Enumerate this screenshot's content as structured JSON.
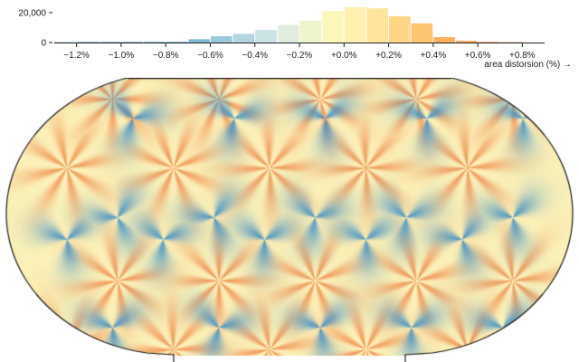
{
  "chart_data": {
    "type": "bar",
    "title": "",
    "xlabel": "area distorsion (%) →",
    "ylabel": "",
    "y_ticks": [
      {
        "value": 0,
        "label": "0"
      },
      {
        "value": 20000,
        "label": "20,000"
      }
    ],
    "x_ticks": [
      {
        "value": -1.2,
        "label": "−1.2%"
      },
      {
        "value": -1.0,
        "label": "−1.0%"
      },
      {
        "value": -0.8,
        "label": "−0.8%"
      },
      {
        "value": -0.6,
        "label": "−0.6%"
      },
      {
        "value": -0.4,
        "label": "−0.4%"
      },
      {
        "value": -0.2,
        "label": "−0.2%"
      },
      {
        "value": 0.0,
        "label": "+0.0%"
      },
      {
        "value": 0.2,
        "label": "+0.2%"
      },
      {
        "value": 0.4,
        "label": "+0.4%"
      },
      {
        "value": 0.6,
        "label": "+0.6%"
      },
      {
        "value": 0.8,
        "label": "+0.8%"
      }
    ],
    "xlim": [
      -1.3,
      0.9
    ],
    "ylim": [
      0,
      29000
    ],
    "bin_width": 0.1,
    "bins": [
      {
        "x0": -1.3,
        "x1": -1.2,
        "count": 150,
        "color": "#2c7bb6"
      },
      {
        "x0": -1.2,
        "x1": -1.1,
        "count": 300,
        "color": "#2c7bb6"
      },
      {
        "x0": -1.1,
        "x1": -1.0,
        "count": 300,
        "color": "#3787bd"
      },
      {
        "x0": -1.0,
        "x1": -0.9,
        "count": 350,
        "color": "#4593c4"
      },
      {
        "x0": -0.9,
        "x1": -0.8,
        "count": 400,
        "color": "#569fca"
      },
      {
        "x0": -0.8,
        "x1": -0.7,
        "count": 500,
        "color": "#6aaccf"
      },
      {
        "x0": -0.7,
        "x1": -0.6,
        "count": 2200,
        "color": "#81bad5"
      },
      {
        "x0": -0.6,
        "x1": -0.5,
        "count": 4200,
        "color": "#9bc9dc"
      },
      {
        "x0": -0.5,
        "x1": -0.4,
        "count": 5800,
        "color": "#b4d6e2"
      },
      {
        "x0": -0.4,
        "x1": -0.3,
        "count": 8400,
        "color": "#cce3e6"
      },
      {
        "x0": -0.3,
        "x1": -0.2,
        "count": 11800,
        "color": "#e0eddf"
      },
      {
        "x0": -0.2,
        "x1": -0.1,
        "count": 14600,
        "color": "#f0f4cd"
      },
      {
        "x0": -0.1,
        "x1": 0.0,
        "count": 21000,
        "color": "#fbf7bb"
      },
      {
        "x0": 0.0,
        "x1": 0.1,
        "count": 23600,
        "color": "#fef0ae"
      },
      {
        "x0": 0.1,
        "x1": 0.2,
        "count": 22800,
        "color": "#fee59b"
      },
      {
        "x0": 0.2,
        "x1": 0.3,
        "count": 17500,
        "color": "#fed685"
      },
      {
        "x0": 0.3,
        "x1": 0.4,
        "count": 12800,
        "color": "#fdc570"
      },
      {
        "x0": 0.4,
        "x1": 0.5,
        "count": 3600,
        "color": "#fcb15f"
      },
      {
        "x0": 0.5,
        "x1": 0.6,
        "count": 1100,
        "color": "#f99d53"
      },
      {
        "x0": 0.6,
        "x1": 0.7,
        "count": 350,
        "color": "#f5884b"
      },
      {
        "x0": 0.7,
        "x1": 0.8,
        "count": 200,
        "color": "#ef7444"
      }
    ]
  },
  "map": {
    "description_projection": "pseudocylindrical world outline",
    "colors": {
      "background": "#fbf1b8",
      "shrink": "#3d8fc6",
      "expand": "#f07b3a",
      "outline": "#1a1a1a"
    },
    "expand_centers": [
      [
        0.06,
        0.3
      ],
      [
        0.27,
        0.3
      ],
      [
        0.46,
        0.3
      ],
      [
        0.65,
        0.3
      ],
      [
        0.85,
        0.3
      ],
      [
        0.15,
        0.05
      ],
      [
        0.36,
        0.05
      ],
      [
        0.56,
        0.05
      ],
      [
        0.75,
        0.05
      ],
      [
        0.94,
        0.05
      ],
      [
        0.16,
        0.71
      ],
      [
        0.36,
        0.71
      ],
      [
        0.55,
        0.71
      ],
      [
        0.75,
        0.71
      ],
      [
        0.94,
        0.71
      ],
      [
        0.06,
        0.96
      ],
      [
        0.27,
        0.96
      ],
      [
        0.46,
        0.96
      ],
      [
        0.65,
        0.96
      ],
      [
        0.85,
        0.96
      ]
    ],
    "shrink_centers": [
      [
        0.19,
        0.12
      ],
      [
        0.39,
        0.12
      ],
      [
        0.57,
        0.12
      ],
      [
        0.77,
        0.12
      ],
      [
        0.96,
        0.12
      ],
      [
        0.16,
        0.48
      ],
      [
        0.35,
        0.48
      ],
      [
        0.55,
        0.48
      ],
      [
        0.73,
        0.48
      ],
      [
        0.94,
        0.48
      ],
      [
        0.06,
        0.56
      ],
      [
        0.25,
        0.56
      ],
      [
        0.45,
        0.56
      ],
      [
        0.65,
        0.56
      ],
      [
        0.84,
        0.56
      ],
      [
        0.15,
        0.88
      ],
      [
        0.36,
        0.88
      ],
      [
        0.56,
        0.88
      ],
      [
        0.74,
        0.88
      ],
      [
        0.92,
        0.88
      ]
    ]
  }
}
